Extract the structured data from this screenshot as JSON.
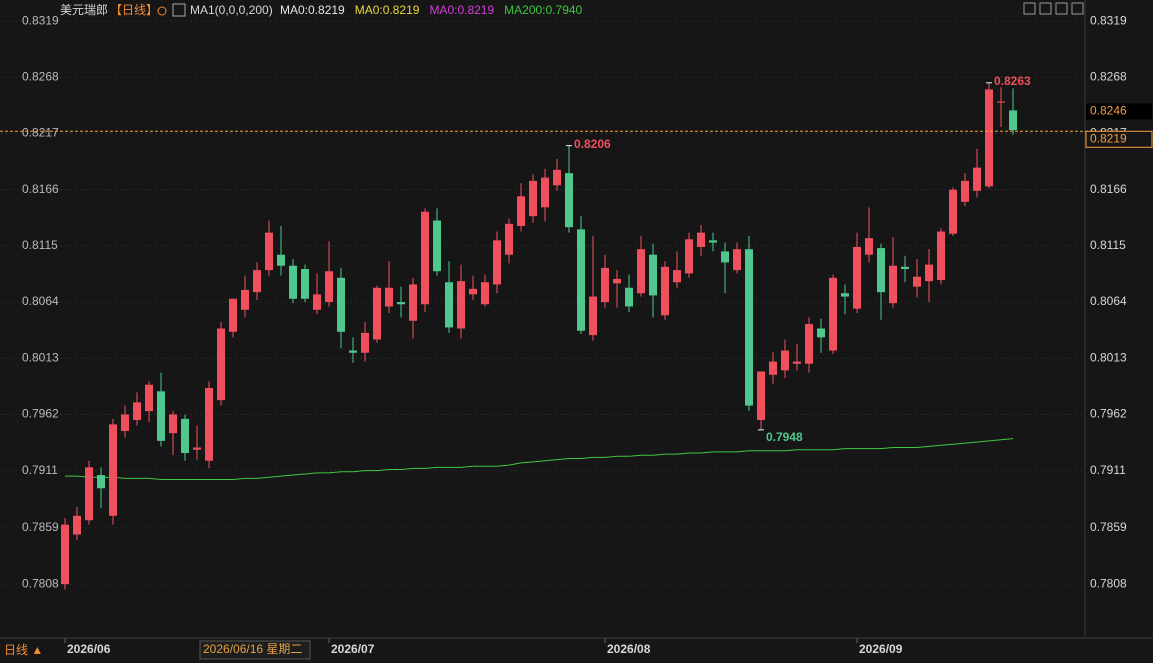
{
  "header": {
    "symbol": "美元瑞郎",
    "period": "【日线】",
    "indicator": "MA1(0,0,0,200)",
    "items": [
      {
        "text": "MA0:0.8219",
        "color": "#e6e6e6"
      },
      {
        "text": "MA0:0.8219",
        "color": "#e8d838"
      },
      {
        "text": "MA0:0.8219",
        "color": "#d040d8"
      },
      {
        "text": "MA200:0.7940",
        "color": "#3fc83f"
      }
    ]
  },
  "period_button": "日线 ▲",
  "crosshair_label": "2026/06/16 星期二",
  "chart_data": {
    "type": "candlestick",
    "categories": [
      "2026/06",
      null,
      null,
      null,
      null,
      null,
      null,
      null,
      null,
      null,
      null,
      null,
      null,
      null,
      null,
      null,
      null,
      null,
      null,
      null,
      null,
      null,
      "2026/07",
      null,
      null,
      null,
      null,
      null,
      null,
      null,
      null,
      null,
      null,
      null,
      null,
      null,
      null,
      null,
      null,
      null,
      null,
      null,
      null,
      null,
      null,
      "2026/08",
      null,
      null,
      null,
      null,
      null,
      null,
      null,
      null,
      null,
      null,
      null,
      null,
      null,
      null,
      null,
      null,
      null,
      null,
      null,
      null,
      "2026/09",
      null,
      null,
      null,
      null,
      null,
      null,
      null,
      null,
      null,
      null,
      null,
      null,
      null
    ],
    "open": [
      0.7808,
      0.7853,
      0.7866,
      0.7907,
      0.787,
      0.7947,
      0.7957,
      0.7965,
      0.7983,
      0.7945,
      0.7958,
      0.793,
      0.792,
      0.7975,
      0.8037,
      0.8057,
      0.8073,
      0.8093,
      0.8107,
      0.8097,
      0.8094,
      0.8057,
      0.8064,
      0.8086,
      0.802,
      0.8018,
      0.803,
      0.806,
      0.8064,
      0.8047,
      0.8062,
      0.8138,
      0.8082,
      0.804,
      0.8071,
      0.8062,
      0.808,
      0.8107,
      0.8133,
      0.8142,
      0.815,
      0.817,
      0.8181,
      0.813,
      0.8034,
      0.8064,
      0.8081,
      0.8077,
      0.8072,
      0.8107,
      0.8052,
      0.8082,
      0.809,
      0.8114,
      0.812,
      0.811,
      0.8093,
      0.8112,
      0.7957,
      0.7998,
      0.8002,
      0.8008,
      0.8008,
      0.804,
      0.802,
      0.8072,
      0.8058,
      0.8107,
      0.8113,
      0.8063,
      0.8096,
      0.8078,
      0.8083,
      0.8084,
      0.8126,
      0.8155,
      0.8165,
      0.8169,
      0.8245,
      0.8238
    ],
    "high": [
      0.7868,
      0.7878,
      0.792,
      0.7914,
      0.7958,
      0.797,
      0.7982,
      0.7992,
      0.8,
      0.7965,
      0.7962,
      0.7952,
      0.7992,
      0.8046,
      0.8067,
      0.8088,
      0.81,
      0.8138,
      0.8133,
      0.8103,
      0.8098,
      0.809,
      0.8119,
      0.8095,
      0.8032,
      0.8046,
      0.8079,
      0.8101,
      0.8078,
      0.8086,
      0.8149,
      0.8149,
      0.8101,
      0.8098,
      0.8088,
      0.8089,
      0.8128,
      0.814,
      0.8172,
      0.818,
      0.8185,
      0.8194,
      0.8206,
      0.8142,
      0.8124,
      0.8107,
      0.8093,
      0.8089,
      0.8124,
      0.8117,
      0.8101,
      0.811,
      0.8127,
      0.8134,
      0.8127,
      0.8118,
      0.8118,
      0.8124,
      0.8001,
      0.8019,
      0.803,
      0.8026,
      0.805,
      0.8049,
      0.8089,
      0.808,
      0.8127,
      0.815,
      0.8117,
      0.8123,
      0.8106,
      0.8103,
      0.8112,
      0.8131,
      0.8168,
      0.8181,
      0.8203,
      0.8263,
      0.8259,
      0.8258
    ],
    "low": [
      0.7803,
      0.7848,
      0.7862,
      0.7877,
      0.7862,
      0.7941,
      0.7952,
      0.7955,
      0.7933,
      0.7925,
      0.792,
      0.7921,
      0.7913,
      0.797,
      0.8032,
      0.805,
      0.8066,
      0.8088,
      0.8088,
      0.8063,
      0.8064,
      0.8053,
      0.806,
      0.8022,
      0.8009,
      0.801,
      0.8027,
      0.8054,
      0.805,
      0.8031,
      0.8055,
      0.8088,
      0.8036,
      0.8031,
      0.8066,
      0.806,
      0.8072,
      0.8099,
      0.8128,
      0.8136,
      0.8137,
      0.8165,
      0.8127,
      0.8035,
      0.8029,
      0.8059,
      0.8059,
      0.8055,
      0.8069,
      0.805,
      0.8048,
      0.8077,
      0.8086,
      0.8106,
      0.811,
      0.8072,
      0.809,
      0.7965,
      0.7948,
      0.799,
      0.7995,
      0.8002,
      0.8,
      0.8018,
      0.8017,
      0.8053,
      0.8054,
      0.81,
      0.8048,
      0.8059,
      0.8082,
      0.8068,
      0.8064,
      0.808,
      0.8124,
      0.8151,
      0.8159,
      0.8167,
      0.8223,
      0.8216
    ],
    "close": [
      0.7862,
      0.787,
      0.7914,
      0.7895,
      0.7953,
      0.7962,
      0.7973,
      0.7989,
      0.7938,
      0.7962,
      0.7927,
      0.7932,
      0.7986,
      0.804,
      0.8067,
      0.8075,
      0.8093,
      0.8127,
      0.8097,
      0.8067,
      0.8067,
      0.8071,
      0.8092,
      0.8037,
      0.8018,
      0.8036,
      0.8077,
      0.8077,
      0.8062,
      0.808,
      0.8146,
      0.8092,
      0.8041,
      0.8083,
      0.8076,
      0.8082,
      0.812,
      0.8135,
      0.816,
      0.8174,
      0.8177,
      0.8184,
      0.8132,
      0.8038,
      0.8069,
      0.8095,
      0.8085,
      0.806,
      0.8112,
      0.807,
      0.8096,
      0.8093,
      0.8121,
      0.8127,
      0.8118,
      0.81,
      0.8112,
      0.797,
      0.8001,
      0.801,
      0.802,
      0.801,
      0.8044,
      0.8032,
      0.8086,
      0.8069,
      0.8114,
      0.8122,
      0.8073,
      0.8097,
      0.8094,
      0.8087,
      0.8098,
      0.8128,
      0.8166,
      0.8174,
      0.8186,
      0.8257,
      0.8246,
      0.822
    ],
    "up_color": "#f0505e",
    "down_color": "#4fc78e",
    "overlays": [
      {
        "color": "#3fc83f",
        "values": [
          0.7906,
          0.7906,
          0.7905,
          0.7905,
          0.7905,
          0.7904,
          0.7904,
          0.7904,
          0.7903,
          0.7903,
          0.7903,
          0.7903,
          0.7903,
          0.7903,
          0.7903,
          0.7904,
          0.7904,
          0.7905,
          0.7906,
          0.7907,
          0.7908,
          0.7909,
          0.7909,
          0.791,
          0.791,
          0.7911,
          0.7911,
          0.7912,
          0.7912,
          0.7913,
          0.7913,
          0.7914,
          0.7914,
          0.7914,
          0.7915,
          0.7915,
          0.7915,
          0.7916,
          0.7918,
          0.7919,
          0.792,
          0.7921,
          0.7922,
          0.7922,
          0.7923,
          0.7923,
          0.7924,
          0.7924,
          0.7925,
          0.7925,
          0.7926,
          0.7926,
          0.7927,
          0.7927,
          0.7928,
          0.7928,
          0.7928,
          0.7929,
          0.7929,
          0.7929,
          0.7929,
          0.793,
          0.793,
          0.793,
          0.793,
          0.7931,
          0.7931,
          0.7931,
          0.7931,
          0.7932,
          0.7932,
          0.7932,
          0.7933,
          0.7934,
          0.7935,
          0.7936,
          0.7937,
          0.7938,
          0.7939,
          0.794
        ]
      }
    ],
    "annotations": [
      0.8263,
      0.8206,
      0.7948
    ],
    "price_line": 0.8219,
    "price_line_color": "#f0a040",
    "last_price": 0.8246,
    "ylim": [
      0.776,
      0.833
    ],
    "yticks": [
      0.8319,
      0.8268,
      0.8217,
      0.8166,
      0.8115,
      0.8064,
      0.8013,
      0.7962,
      0.7911,
      0.7859,
      0.7808
    ],
    "grid": true
  }
}
